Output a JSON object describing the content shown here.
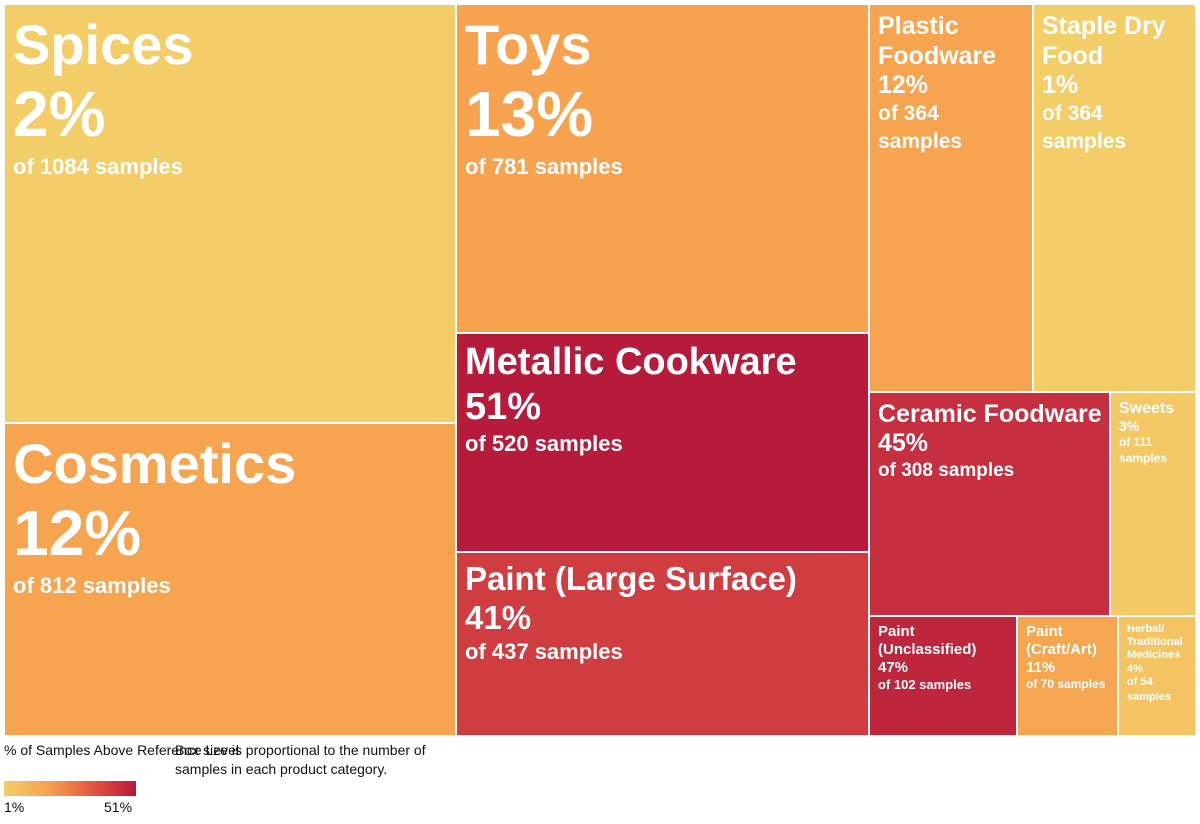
{
  "chart_data": {
    "type": "treemap",
    "value_label": "% of Samples Above Reference Level",
    "size_label": "number of samples",
    "items": [
      {
        "label": "Spices",
        "percent": "2%",
        "samples": "of 1084 samples",
        "pct_value": 2,
        "n": 1084,
        "color": "#f3cd67"
      },
      {
        "label": "Cosmetics",
        "percent": "12%",
        "samples": "of 812 samples",
        "pct_value": 12,
        "n": 812,
        "color": "#f6a44f"
      },
      {
        "label": "Toys",
        "percent": "13%",
        "samples": "of 781 samples",
        "pct_value": 13,
        "n": 781,
        "color": "#f7a24e"
      },
      {
        "label": "Metallic Cookware",
        "percent": "51%",
        "samples": "of 520 samples",
        "pct_value": 51,
        "n": 520,
        "color": "#b61b3b"
      },
      {
        "label": "Paint (Large Surface)",
        "percent": "41%",
        "samples": "of 437 samples",
        "pct_value": 41,
        "n": 437,
        "color": "#cf3d41"
      },
      {
        "label": "Plastic Foodware",
        "percent": "12%",
        "samples": "of 364 samples",
        "pct_value": 12,
        "n": 364,
        "color": "#f6a44f"
      },
      {
        "label": "Staple Dry Food",
        "percent": "1%",
        "samples": "of 364 samples",
        "pct_value": 1,
        "n": 364,
        "color": "#f3cd67"
      },
      {
        "label": "Ceramic Foodware",
        "percent": "45%",
        "samples": "of 308 samples",
        "pct_value": 45,
        "n": 308,
        "color": "#c52f40"
      },
      {
        "label": "Sweets",
        "percent": "3%",
        "samples": "of 111 samples",
        "pct_value": 3,
        "n": 111,
        "color": "#f3c865"
      },
      {
        "label": "Paint (Unclassified)",
        "percent": "47%",
        "samples": "of 102 samples",
        "pct_value": 47,
        "n": 102,
        "color": "#be263e"
      },
      {
        "label": "Paint (Craft/Art)",
        "percent": "11%",
        "samples": "of 70 samples",
        "pct_value": 11,
        "n": 70,
        "color": "#f6a650"
      },
      {
        "label": "Herbal/ Traditional Medicines",
        "percent": "4%",
        "samples": "of 54 samples",
        "pct_value": 4,
        "n": 54,
        "color": "#f4c463"
      }
    ]
  },
  "legend": {
    "title": "% of Samples Above Reference Level",
    "min_label": "1%",
    "max_label": "51%",
    "color_min": "#f3cd67",
    "color_max": "#b5183a"
  },
  "note": "Box size is proportional to the number of samples in each product category."
}
